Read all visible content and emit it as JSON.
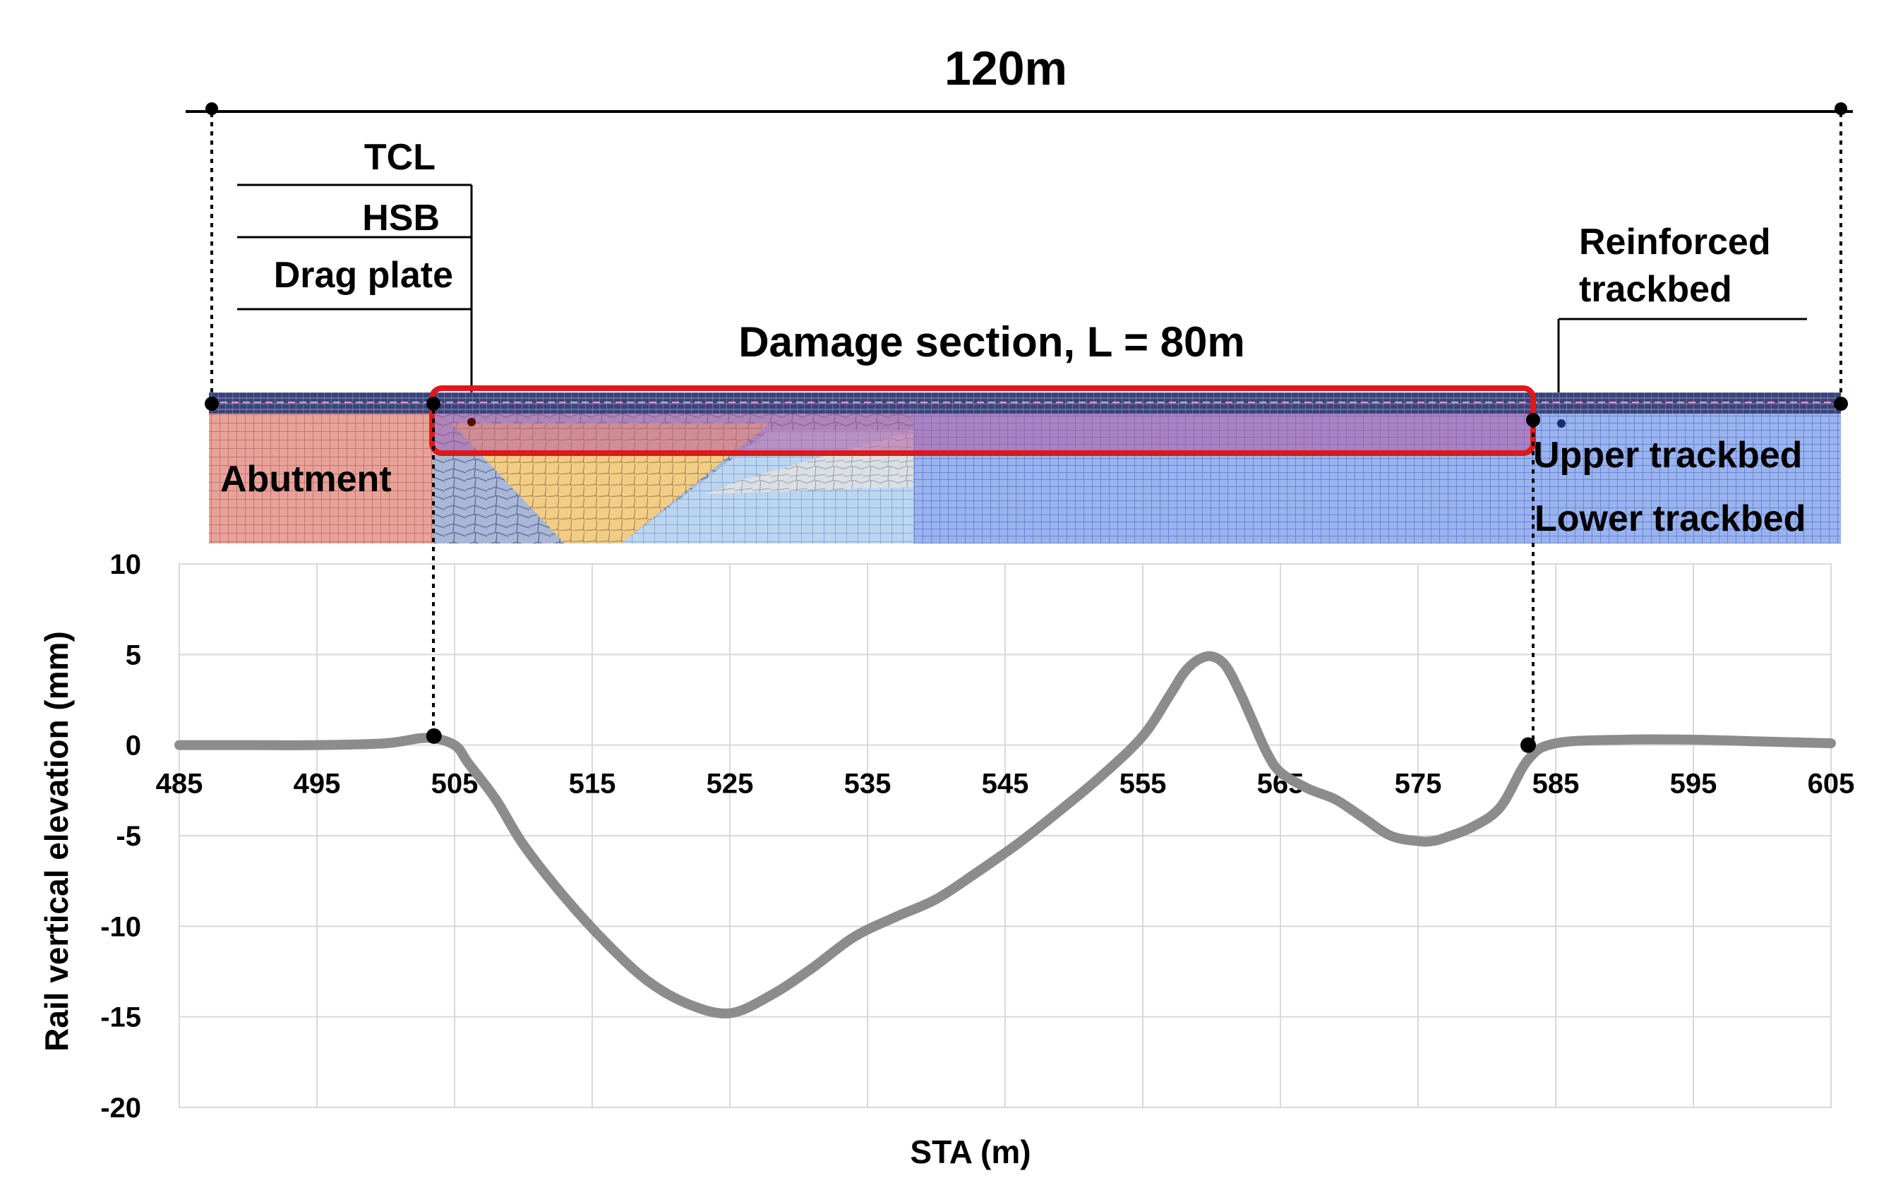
{
  "figure": {
    "total_length_label": "120m",
    "damage_label": "Damage section, L = 80m",
    "layer_labels": [
      "TCL",
      "HSB",
      "Drag plate"
    ],
    "reinforced_label": [
      "Reinforced",
      "trackbed"
    ],
    "abutment_label": "Abutment",
    "upper_label": "Upper trackbed",
    "lower_label": "Lower trackbed",
    "colors": {
      "abutment": "#e8a29a",
      "backfill": "#f2cd86",
      "trackbed": "#9ab4ec",
      "trackbed_light": "#bcd6f0",
      "surface": "#2b3566",
      "damage_box": "#e01818",
      "curve": "#8c8c8c",
      "grid": "#d9d9d9"
    }
  },
  "chart_data": {
    "type": "line",
    "xlabel": "STA (m)",
    "ylabel": "Rail vertical elevation (mm)",
    "xlim": [
      485,
      605
    ],
    "ylim": [
      -20,
      10
    ],
    "xticks": [
      485,
      495,
      505,
      515,
      525,
      535,
      545,
      555,
      565,
      575,
      585,
      595,
      605
    ],
    "yticks": [
      10,
      5,
      0,
      -5,
      -10,
      -15,
      -20
    ],
    "grid": true,
    "legend": false,
    "series": [
      {
        "x": [
          485,
          490,
          495,
          500,
          503,
          505,
          506,
          508,
          510,
          513,
          516,
          519,
          522,
          525,
          528,
          531,
          534,
          537,
          540,
          543,
          546,
          549,
          552,
          555,
          557,
          558,
          559,
          560,
          561,
          562,
          563,
          564,
          565,
          567,
          569,
          571,
          573,
          575,
          576,
          577,
          579,
          581,
          583,
          585,
          590,
          595,
          600,
          605
        ],
        "y": [
          0,
          0,
          0,
          0.1,
          0.4,
          0,
          -1,
          -3,
          -5.5,
          -8.4,
          -10.9,
          -13.0,
          -14.3,
          -14.8,
          -13.8,
          -12.3,
          -10.6,
          -9.5,
          -8.5,
          -7.0,
          -5.4,
          -3.6,
          -1.7,
          0.5,
          2.8,
          4.0,
          4.7,
          4.9,
          4.4,
          3.0,
          1.3,
          -0.4,
          -1.5,
          -2.4,
          -3.0,
          -4.0,
          -5.0,
          -5.3,
          -5.3,
          -5.1,
          -4.5,
          -3.4,
          -0.8,
          0.1,
          0.3,
          0.3,
          0.2,
          0.1
        ]
      }
    ],
    "markers": [
      {
        "x": 503.5,
        "y": 0.5
      },
      {
        "x": 583.0,
        "y": 0
      }
    ]
  }
}
